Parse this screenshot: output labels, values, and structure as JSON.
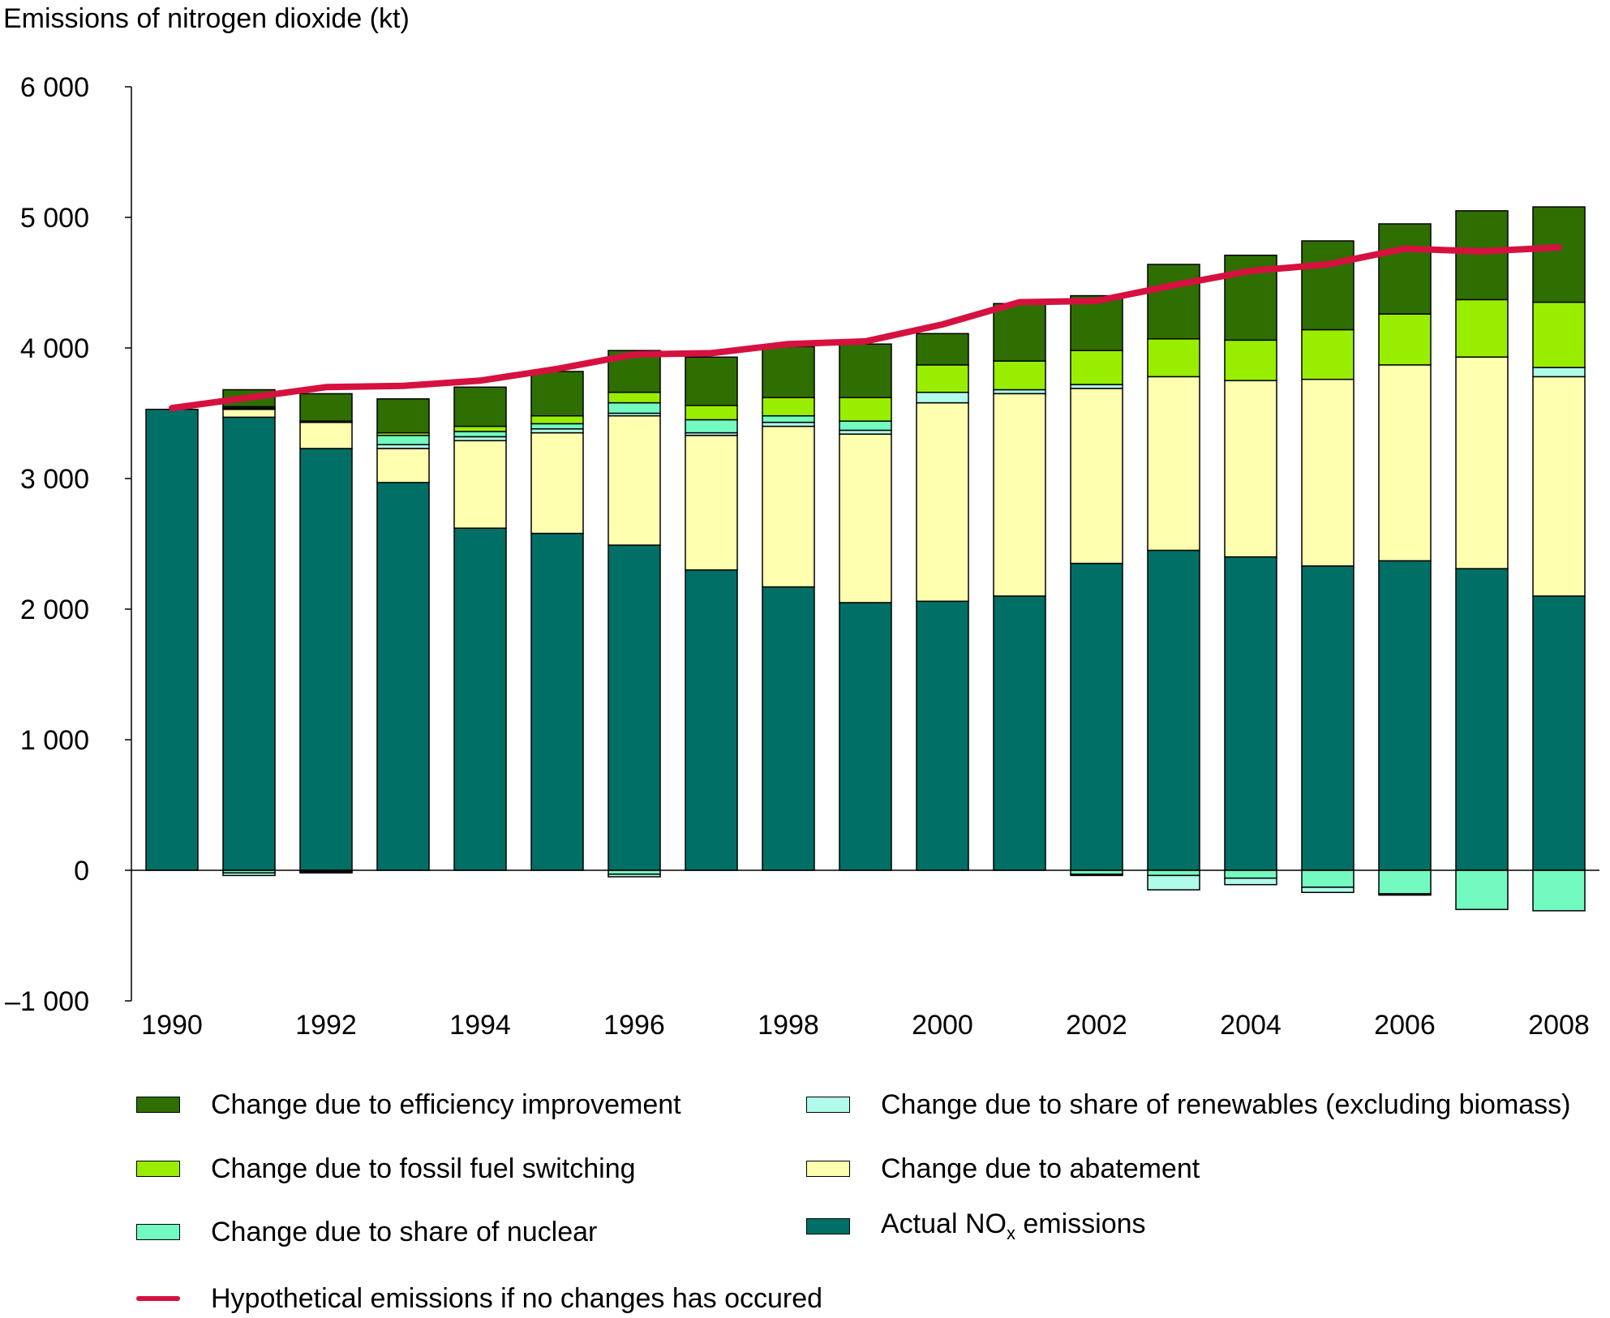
{
  "chart_data": {
    "type": "bar",
    "title": "Emissions of nitrogen dioxide (kt)",
    "ylabel": "",
    "xlabel": "",
    "ylim": [
      -1000,
      6000
    ],
    "yticks": [
      6000,
      5000,
      4000,
      3000,
      2000,
      1000,
      0,
      -1000
    ],
    "ytick_labels": [
      "6 000",
      "5 000",
      "4 000",
      "3 000",
      "2 000",
      "1 000",
      "0",
      "–1 000"
    ],
    "categories": [
      "1990",
      "1991",
      "1992",
      "1993",
      "1994",
      "1995",
      "1996",
      "1997",
      "1998",
      "1999",
      "2000",
      "2001",
      "2002",
      "2003",
      "2004",
      "2005",
      "2006",
      "2007",
      "2008"
    ],
    "xtick_labels": [
      "1990",
      "",
      "1992",
      "",
      "1994",
      "",
      "1996",
      "",
      "1998",
      "",
      "2000",
      "",
      "2002",
      "",
      "2004",
      "",
      "2006",
      "",
      "2008"
    ],
    "series": [
      {
        "name": "Actual NOx emissions",
        "color": "#006f65",
        "values": [
          3530,
          3470,
          3230,
          2970,
          2620,
          2580,
          2490,
          2300,
          2170,
          2050,
          2060,
          2100,
          2350,
          2450,
          2400,
          2330,
          2370,
          2310,
          2100
        ]
      },
      {
        "name": "Change due to abatement",
        "color": "#ffffb0",
        "values": [
          0,
          60,
          200,
          260,
          670,
          770,
          990,
          1030,
          1230,
          1290,
          1520,
          1550,
          1340,
          1330,
          1350,
          1430,
          1500,
          1620,
          1680
        ]
      },
      {
        "name": "Change due to share of renewables (excluding biomass)",
        "color": "#b0fbe9",
        "positive": [
          0,
          10,
          10,
          30,
          30,
          30,
          20,
          20,
          30,
          30,
          80,
          30,
          30,
          0,
          0,
          0,
          0,
          0,
          70
        ],
        "negative": [
          0,
          -20,
          -10,
          0,
          0,
          0,
          -20,
          0,
          0,
          0,
          0,
          0,
          -10,
          -110,
          -50,
          -40,
          -10,
          0,
          0
        ]
      },
      {
        "name": "Change due to share of nuclear",
        "color": "#72fac0",
        "positive": [
          0,
          0,
          0,
          70,
          40,
          40,
          80,
          100,
          50,
          70,
          0,
          0,
          0,
          0,
          0,
          0,
          0,
          0,
          0
        ],
        "negative": [
          0,
          -20,
          -10,
          0,
          0,
          0,
          -30,
          0,
          0,
          0,
          0,
          0,
          -30,
          -40,
          -60,
          -130,
          -180,
          -300,
          -310
        ]
      },
      {
        "name": "Change due to fossil fuel switching",
        "color": "#99ee00",
        "values": [
          0,
          10,
          0,
          20,
          40,
          60,
          80,
          110,
          140,
          180,
          210,
          220,
          260,
          290,
          310,
          380,
          390,
          440,
          500
        ]
      },
      {
        "name": "Change due to efficiency improvement",
        "color": "#2f6e01",
        "values": [
          0,
          130,
          210,
          260,
          300,
          340,
          320,
          370,
          390,
          410,
          240,
          440,
          420,
          570,
          650,
          680,
          690,
          680,
          730
        ]
      }
    ],
    "line": {
      "name": "Hypothetical emissions if no changes has occured",
      "color": "#d6113f",
      "values": [
        3540,
        3620,
        3700,
        3710,
        3750,
        3840,
        3950,
        3960,
        4030,
        4050,
        4180,
        4350,
        4360,
        4480,
        4590,
        4640,
        4760,
        4740,
        4770
      ]
    },
    "legend_position": "bottom",
    "grid": false
  },
  "legend": {
    "efficiency": "Change due to efficiency improvement",
    "renewables": "Change due to share of renewables (excluding biomass)",
    "fossil": "Change due to fossil fuel switching",
    "abatement": "Change due to abatement",
    "nuclear": "Change due to share of nuclear",
    "actual_prefix": "Actual NO",
    "actual_sub": "x",
    "actual_suffix": " emissions",
    "hypothetical": "Hypothetical emissions if no changes has occured"
  }
}
